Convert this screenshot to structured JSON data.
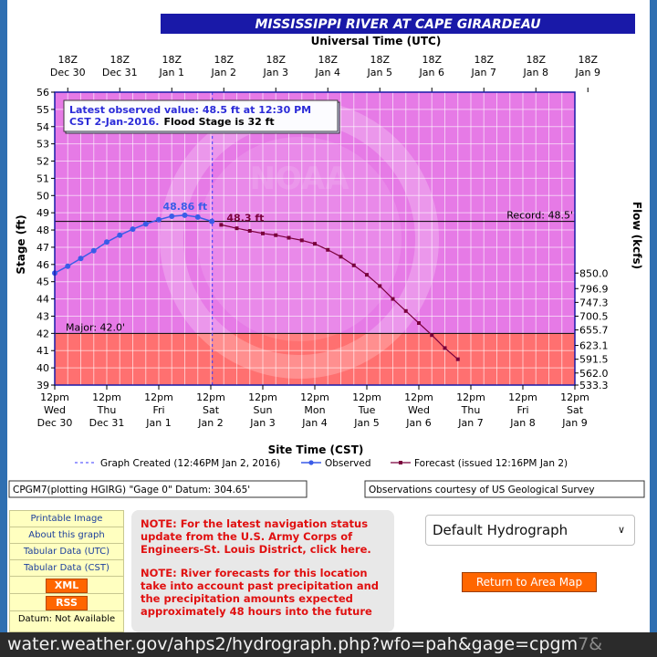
{
  "chart_data": {
    "type": "line",
    "title": "MISSISSIPPI RIVER AT CAPE GIRARDEAU",
    "top_axis_label": "Universal Time (UTC)",
    "xlabel": "Site Time (CST)",
    "ylabel": "Stage (ft)",
    "y2label": "Flow (kcfs)",
    "ylim": [
      39,
      56
    ],
    "yticks": [
      39,
      40,
      41,
      42,
      43,
      44,
      45,
      46,
      47,
      48,
      49,
      50,
      51,
      52,
      53,
      54,
      55,
      56
    ],
    "y2ticks": [
      {
        "stage": 39.0,
        "label": "533.3"
      },
      {
        "stage": 39.7,
        "label": "562.0"
      },
      {
        "stage": 40.5,
        "label": "591.5"
      },
      {
        "stage": 41.3,
        "label": "623.1"
      },
      {
        "stage": 42.2,
        "label": "655.7"
      },
      {
        "stage": 43.0,
        "label": "700.5"
      },
      {
        "stage": 43.8,
        "label": "747.3"
      },
      {
        "stage": 44.6,
        "label": "796.9"
      },
      {
        "stage": 45.5,
        "label": "850.0"
      }
    ],
    "x_range_days": [
      0,
      10
    ],
    "utc_ticks": [
      {
        "l1": "18Z",
        "l2": "Dec 30"
      },
      {
        "l1": "18Z",
        "l2": "Dec 31"
      },
      {
        "l1": "18Z",
        "l2": "Jan 1"
      },
      {
        "l1": "18Z",
        "l2": "Jan 2"
      },
      {
        "l1": "18Z",
        "l2": "Jan 3"
      },
      {
        "l1": "18Z",
        "l2": "Jan 4"
      },
      {
        "l1": "18Z",
        "l2": "Jan 5"
      },
      {
        "l1": "18Z",
        "l2": "Jan 6"
      },
      {
        "l1": "18Z",
        "l2": "Jan 7"
      },
      {
        "l1": "18Z",
        "l2": "Jan 8"
      },
      {
        "l1": "18Z",
        "l2": "Jan 9"
      }
    ],
    "cst_ticks": [
      {
        "l1": "12pm",
        "l2": "Wed",
        "l3": "Dec 30"
      },
      {
        "l1": "12pm",
        "l2": "Thu",
        "l3": "Dec 31"
      },
      {
        "l1": "12pm",
        "l2": "Fri",
        "l3": "Jan 1"
      },
      {
        "l1": "12pm",
        "l2": "Sat",
        "l3": "Jan 2"
      },
      {
        "l1": "12pm",
        "l2": "Sun",
        "l3": "Jan 3"
      },
      {
        "l1": "12pm",
        "l2": "Mon",
        "l3": "Jan 4"
      },
      {
        "l1": "12pm",
        "l2": "Tue",
        "l3": "Jan 5"
      },
      {
        "l1": "12pm",
        "l2": "Wed",
        "l3": "Jan 6"
      },
      {
        "l1": "12pm",
        "l2": "Thu",
        "l3": "Jan 7"
      },
      {
        "l1": "12pm",
        "l2": "Fri",
        "l3": "Jan 8"
      },
      {
        "l1": "12pm",
        "l2": "Sat",
        "l3": "Jan 9"
      }
    ],
    "observed": {
      "name": "Observed",
      "x": [
        0,
        0.25,
        0.5,
        0.75,
        1,
        1.25,
        1.5,
        1.75,
        2,
        2.25,
        2.5,
        2.75,
        3.02
      ],
      "y": [
        45.5,
        45.9,
        46.35,
        46.8,
        47.3,
        47.7,
        48.05,
        48.35,
        48.6,
        48.8,
        48.86,
        48.75,
        48.5
      ],
      "color": "#3a5ce8"
    },
    "forecast": {
      "name": "Forecast (issued 12:16PM Jan 2)",
      "x": [
        3.2,
        3.5,
        3.75,
        4,
        4.25,
        4.5,
        4.75,
        5,
        5.25,
        5.5,
        5.75,
        6,
        6.25,
        6.5,
        6.75,
        7,
        7.25,
        7.5,
        7.75
      ],
      "y": [
        48.3,
        48.1,
        47.95,
        47.8,
        47.7,
        47.55,
        47.4,
        47.2,
        46.85,
        46.45,
        45.95,
        45.4,
        44.75,
        44.0,
        43.3,
        42.6,
        41.9,
        41.15,
        40.5
      ],
      "color": "#7a003c"
    },
    "peak_label": "48.86 ft",
    "forecast_start_label": "48.3 ft",
    "record_label": "Record: 48.5'",
    "record_stage": 48.5,
    "major_label": "Major: 42.0'",
    "major_stage": 42.0,
    "flood_stage": 32,
    "graph_created_x": 3.03,
    "legend_created": "Graph Created (12:46PM Jan 2, 2016)",
    "legend_observed": "Observed",
    "legend_forecast": "Forecast (issued 12:16PM Jan 2)",
    "info_line1": "Latest observed value: 48.5 ft at 12:30 PM",
    "info_line2_a": "CST 2-Jan-2016.",
    "info_line2_b": "Flood Stage is 32 ft",
    "datum_text": "CPGM7(plotting HGIRG) \"Gage 0\" Datum: 304.65'",
    "courtesy_text": "Observations courtesy of US Geological Survey",
    "colors": {
      "major": "#ff7070",
      "above": "#e67ae6",
      "frame": "#1919a8"
    }
  },
  "links": {
    "printable": "Printable Image",
    "about": "About this graph",
    "tabular_utc": "Tabular Data (UTC)",
    "tabular_cst": "Tabular Data (CST)",
    "xml": "XML",
    "rss": "RSS",
    "datum": "Datum: Not Available"
  },
  "notes": {
    "nav": "NOTE: For the latest navigation status update from the U.S. Army Corps of Engineers-St. Louis District, click here.",
    "forecast": "NOTE: River forecasts for this location take into account past precipitation and the precipitation amounts expected approximately 48 hours into the future"
  },
  "select": {
    "value": "Default Hydrograph"
  },
  "return_button": "Return to Area Map",
  "url": {
    "main": "water.weather.gov/ahps2/hydrograph.php?wfo=pah&gage=cpgm",
    "fade": "7&"
  }
}
